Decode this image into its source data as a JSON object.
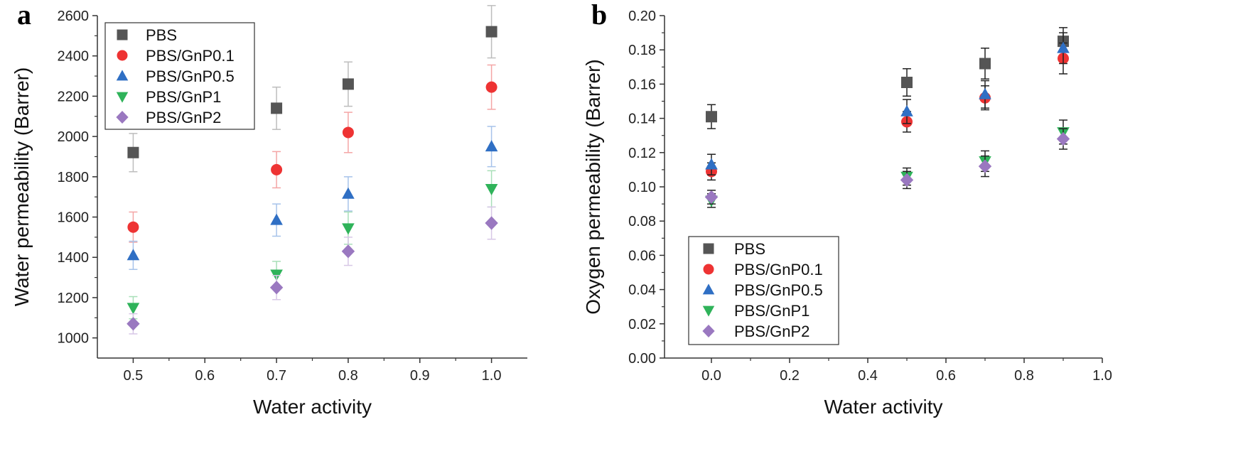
{
  "chart_data": [
    {
      "panel_label": "a",
      "type": "scatter",
      "xlabel": "Water activity",
      "ylabel": "Water permeability (Barrer)",
      "xlim": [
        0.45,
        1.05
      ],
      "ylim": [
        900,
        2600
      ],
      "xticks": [
        0.5,
        0.6,
        0.7,
        0.8,
        0.9,
        1.0
      ],
      "xtick_labels": [
        "0.5",
        "0.6",
        "0.7",
        "0.8",
        "0.9",
        "1.0"
      ],
      "yticks": [
        1000,
        1200,
        1400,
        1600,
        1800,
        2000,
        2200,
        2400,
        2600
      ],
      "ytick_labels": [
        "1000",
        "1200",
        "1400",
        "1600",
        "1800",
        "2000",
        "2200",
        "2400",
        "2600"
      ],
      "legend_position": "top-left",
      "errorbar_style": "light",
      "series": [
        {
          "name": "PBS",
          "marker": "square",
          "color": "#555555",
          "x": [
            0.5,
            0.7,
            0.8,
            1.0
          ],
          "values": [
            1920,
            2140,
            2260,
            2520
          ],
          "err": [
            95,
            105,
            110,
            130
          ]
        },
        {
          "name": "PBS/GnP0.1",
          "marker": "circle",
          "color": "#ee3333",
          "x": [
            0.5,
            0.7,
            0.8,
            1.0
          ],
          "values": [
            1550,
            1835,
            2020,
            2245
          ],
          "err": [
            75,
            90,
            100,
            110
          ]
        },
        {
          "name": "PBS/GnP0.5",
          "marker": "triangle-up",
          "color": "#2f6fc4",
          "x": [
            0.5,
            0.7,
            0.8,
            1.0
          ],
          "values": [
            1410,
            1585,
            1715,
            1950
          ],
          "err": [
            70,
            80,
            85,
            100
          ]
        },
        {
          "name": "PBS/GnP1",
          "marker": "triangle-down",
          "color": "#2fb35a",
          "x": [
            0.5,
            0.7,
            0.8,
            1.0
          ],
          "values": [
            1150,
            1315,
            1545,
            1740
          ],
          "err": [
            55,
            65,
            80,
            90
          ]
        },
        {
          "name": "PBS/GnP2",
          "marker": "diamond",
          "color": "#9a78c0",
          "x": [
            0.5,
            0.7,
            0.8,
            1.0
          ],
          "values": [
            1070,
            1250,
            1430,
            1570
          ],
          "err": [
            50,
            60,
            70,
            80
          ]
        }
      ]
    },
    {
      "panel_label": "b",
      "type": "scatter",
      "xlabel": "Water activity",
      "ylabel": "Oxygen permeability (Barrer)",
      "xlim": [
        -0.12,
        1.0
      ],
      "ylim": [
        0.0,
        0.2
      ],
      "xticks": [
        0.0,
        0.2,
        0.4,
        0.6,
        0.8,
        1.0
      ],
      "xtick_labels": [
        "0.0",
        "0.2",
        "0.4",
        "0.6",
        "0.8",
        "1.0"
      ],
      "yticks": [
        0.0,
        0.02,
        0.04,
        0.06,
        0.08,
        0.1,
        0.12,
        0.14,
        0.16,
        0.18,
        0.2
      ],
      "ytick_labels": [
        "0.00",
        "0.02",
        "0.04",
        "0.06",
        "0.08",
        "0.10",
        "0.12",
        "0.14",
        "0.16",
        "0.18",
        "0.20"
      ],
      "legend_position": "bottom-left",
      "errorbar_style": "dark",
      "series": [
        {
          "name": "PBS",
          "marker": "square",
          "color": "#555555",
          "x": [
            0.0,
            0.5,
            0.7,
            0.9
          ],
          "values": [
            0.141,
            0.161,
            0.172,
            0.185
          ],
          "err": [
            0.007,
            0.008,
            0.009,
            0.008
          ]
        },
        {
          "name": "PBS/GnP0.1",
          "marker": "circle",
          "color": "#ee3333",
          "x": [
            0.0,
            0.5,
            0.7,
            0.9
          ],
          "values": [
            0.109,
            0.138,
            0.152,
            0.175
          ],
          "err": [
            0.005,
            0.006,
            0.007,
            0.009
          ]
        },
        {
          "name": "PBS/GnP0.5",
          "marker": "triangle-up",
          "color": "#2f6fc4",
          "x": [
            0.0,
            0.5,
            0.7,
            0.9
          ],
          "values": [
            0.113,
            0.144,
            0.154,
            0.181
          ],
          "err": [
            0.006,
            0.007,
            0.008,
            0.009
          ]
        },
        {
          "name": "PBS/GnP1",
          "marker": "triangle-down",
          "color": "#2fb35a",
          "x": [
            0.0,
            0.5,
            0.7,
            0.9
          ],
          "values": [
            0.092,
            0.106,
            0.115,
            0.132
          ],
          "err": [
            0.004,
            0.005,
            0.006,
            0.007
          ]
        },
        {
          "name": "PBS/GnP2",
          "marker": "diamond",
          "color": "#9a78c0",
          "x": [
            0.0,
            0.5,
            0.7,
            0.9
          ],
          "values": [
            0.094,
            0.104,
            0.112,
            0.128
          ],
          "err": [
            0.004,
            0.005,
            0.006,
            0.006
          ]
        }
      ]
    }
  ]
}
